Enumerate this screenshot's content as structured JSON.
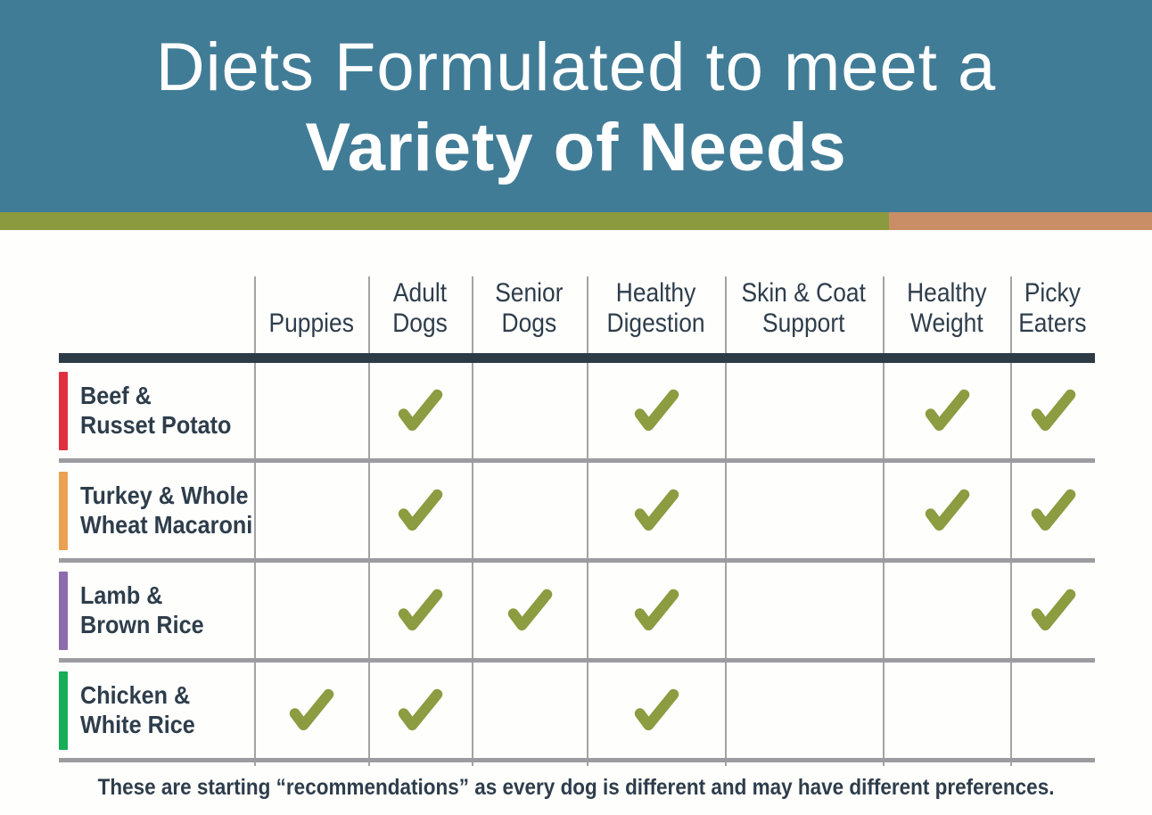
{
  "colors": {
    "banner_bg": "#417c97",
    "stripe_green": "#8b9a3e",
    "stripe_tan": "#c98e66",
    "header_rule": "#2d3b47",
    "grid_line": "#9c9ca0",
    "text_dark": "#2e3d4b",
    "check": "#8b9c41"
  },
  "banner": {
    "title_line1": "Diets Formulated to meet a",
    "title_line2": "Variety of Needs"
  },
  "table": {
    "columns": [
      {
        "label": "Puppies",
        "lines": [
          "Puppies"
        ]
      },
      {
        "label": "Adult Dogs",
        "lines": [
          "Adult",
          "Dogs"
        ]
      },
      {
        "label": "Senior Dogs",
        "lines": [
          "Senior",
          "Dogs"
        ]
      },
      {
        "label": "Healthy Digestion",
        "lines": [
          "Healthy",
          "Digestion"
        ]
      },
      {
        "label": "Skin & Coat Support",
        "lines": [
          "Skin & Coat",
          "Support"
        ]
      },
      {
        "label": "Healthy Weight",
        "lines": [
          "Healthy",
          "Weight"
        ]
      },
      {
        "label": "Picky Eaters",
        "lines": [
          "Picky",
          "Eaters"
        ]
      }
    ],
    "rows": [
      {
        "label": "Beef & Russet Potato",
        "lines": [
          "Beef &",
          "Russet Potato"
        ],
        "accent": "#e0303f",
        "checks": [
          false,
          true,
          false,
          true,
          false,
          true,
          true
        ]
      },
      {
        "label": "Turkey & Whole Wheat Macaroni",
        "lines": [
          "Turkey & Whole",
          "Wheat Macaroni"
        ],
        "accent": "#eaa251",
        "checks": [
          false,
          true,
          false,
          true,
          false,
          true,
          true
        ]
      },
      {
        "label": "Lamb & Brown Rice",
        "lines": [
          "Lamb &",
          "Brown Rice"
        ],
        "accent": "#8d6cae",
        "checks": [
          false,
          true,
          true,
          true,
          false,
          false,
          true
        ]
      },
      {
        "label": "Chicken & White Rice",
        "lines": [
          "Chicken &",
          "White Rice"
        ],
        "accent": "#16ae58",
        "checks": [
          true,
          true,
          false,
          true,
          false,
          false,
          false
        ]
      }
    ]
  },
  "footer": {
    "note": "These are starting “recommendations” as every dog is different and may have different preferences."
  },
  "chart_data": {
    "type": "table",
    "title": "Diets Formulated to meet a Variety of Needs",
    "columns": [
      "Puppies",
      "Adult Dogs",
      "Senior Dogs",
      "Healthy Digestion",
      "Skin & Coat Support",
      "Healthy Weight",
      "Picky Eaters"
    ],
    "rows": [
      "Beef & Russet Potato",
      "Turkey & Whole Wheat Macaroni",
      "Lamb & Brown Rice",
      "Chicken & White Rice"
    ],
    "checks": [
      [
        0,
        1,
        0,
        1,
        0,
        1,
        1
      ],
      [
        0,
        1,
        0,
        1,
        0,
        1,
        1
      ],
      [
        0,
        1,
        1,
        1,
        0,
        0,
        1
      ],
      [
        1,
        1,
        0,
        1,
        0,
        0,
        0
      ]
    ],
    "note": "These are starting “recommendations” as every dog is different and may have different preferences."
  }
}
